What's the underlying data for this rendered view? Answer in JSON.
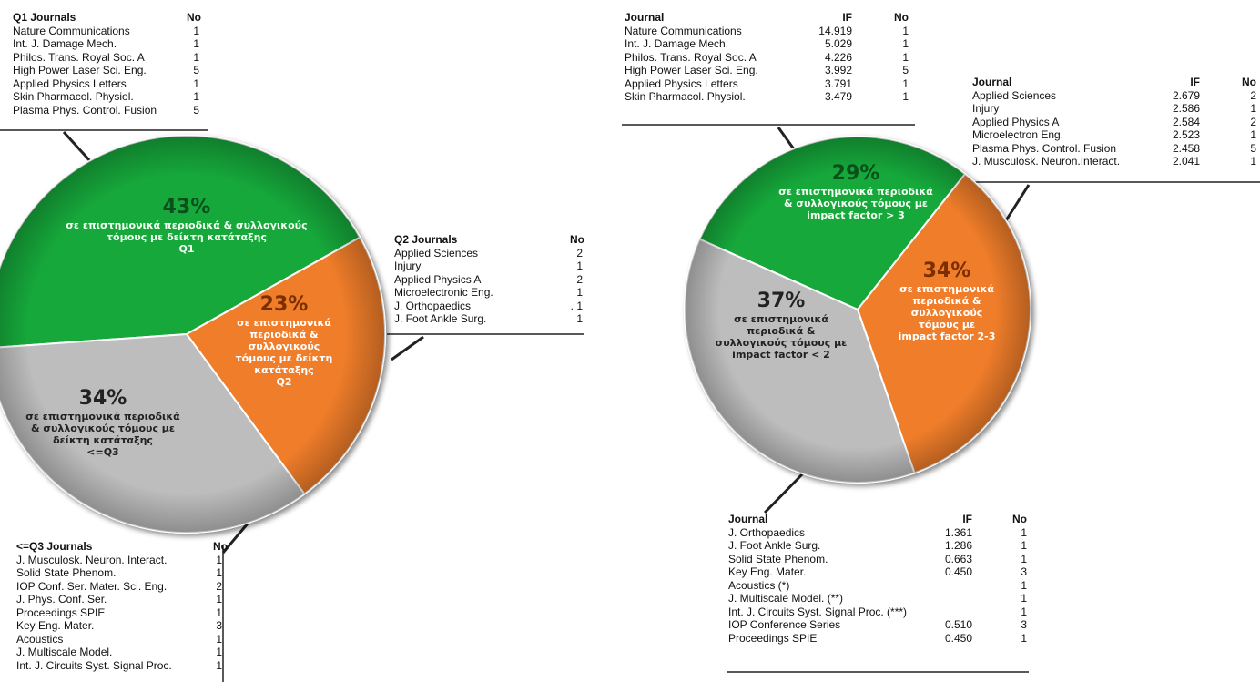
{
  "chart_data": [
    {
      "type": "pie",
      "categories": [
        "σε επιστημονικά περιοδικά & συλλογικούς\nτόμους με δείκτη κατάταξης\nQ1",
        "σε επιστημονικά\nπεριοδικά &\nσυλλογικούς\nτόμους με δείκτη\nκατάταξης\nQ2",
        "σε επιστημονικά περιοδικά\n& συλλογικούς τόμους με\nδείκτη κατάταξης\n<=Q3"
      ],
      "values": [
        43,
        23,
        34
      ],
      "value_labels": [
        "43%",
        "23%",
        "34%"
      ],
      "colors": [
        "#14a83a",
        "#ef7d2a",
        "#bdbdbd"
      ],
      "text_colors": [
        "#f2fff2",
        "#ffffff",
        "#222222"
      ],
      "value_label_colors": [
        "#0b4f1c",
        "#7a2f00",
        "#222222"
      ],
      "tables": [
        {
          "header": {
            "journal": "Q1 Journals",
            "no": "No"
          },
          "rows": [
            {
              "journal": "Nature Communications",
              "no": "1"
            },
            {
              "journal": "Int. J. Damage Mech.",
              "no": "1"
            },
            {
              "journal": "Philos. Trans. Royal Soc. A",
              "no": "1"
            },
            {
              "journal": "High Power Laser Sci. Eng.",
              "no": "5"
            },
            {
              "journal": "Applied Physics Letters",
              "no": "1"
            },
            {
              "journal": "Skin Pharmacol. Physiol.",
              "no": "1"
            },
            {
              "journal": "Plasma Phys. Control. Fusion",
              "no": "5"
            }
          ]
        },
        {
          "header": {
            "journal": "Q2 Journals",
            "no": "No"
          },
          "rows": [
            {
              "journal": "Applied Sciences",
              "no": "2"
            },
            {
              "journal": "Injury",
              "no": "1"
            },
            {
              "journal": "Applied Physics A",
              "no": "2"
            },
            {
              "journal": "Microelectronic Eng.",
              "no": "1"
            },
            {
              "journal": "J. Orthopaedics",
              "no": ". 1"
            },
            {
              "journal": "J. Foot Ankle Surg.",
              "no": "1"
            }
          ]
        },
        {
          "header": {
            "journal": "<=Q3 Journals",
            "no": "No"
          },
          "rows": [
            {
              "journal": "J. Musculosk. Neuron. Interact.",
              "no": "1"
            },
            {
              "journal": "Solid State Phenom.",
              "no": "1"
            },
            {
              "journal": "IOP Conf. Ser. Mater. Sci. Eng.",
              "no": "2"
            },
            {
              "journal": "J. Phys. Conf. Ser.",
              "no": "1"
            },
            {
              "journal": "Proceedings SPIE",
              "no": "1"
            },
            {
              "journal": "Key Eng. Mater.",
              "no": "3"
            },
            {
              "journal": "Acoustics",
              "no": "1"
            },
            {
              "journal": "J. Multiscale Model.",
              "no": "1"
            },
            {
              "journal": "Int. J. Circuits Syst. Signal Proc.",
              "no": "1"
            }
          ]
        }
      ]
    },
    {
      "type": "pie",
      "categories": [
        "σε επιστημονικά περιοδικά\n& συλλογικούς τόμους με\nimpact factor > 3",
        "σε επιστημονικά\nπεριοδικά &\nσυλλογικούς\nτόμους με\nimpact factor 2-3",
        "σε επιστημονικά\nπεριοδικά &\nσυλλογικούς τόμους με\nimpact factor < 2"
      ],
      "values": [
        29,
        34,
        37
      ],
      "value_labels": [
        "29%",
        "34%",
        "37%"
      ],
      "colors": [
        "#14a83a",
        "#ef7d2a",
        "#bdbdbd"
      ],
      "text_colors": [
        "#f2fff2",
        "#ffffff",
        "#222222"
      ],
      "value_label_colors": [
        "#0b4f1c",
        "#7a2f00",
        "#222222"
      ],
      "tables": [
        {
          "header": {
            "journal": "Journal",
            "if": "IF",
            "no": "No"
          },
          "rows": [
            {
              "journal": "Nature Communications",
              "if": "14.919",
              "no": "1"
            },
            {
              "journal": "Int. J. Damage Mech.",
              "if": "5.029",
              "no": "1"
            },
            {
              "journal": "Philos. Trans. Royal Soc. A",
              "if": "4.226",
              "no": "1"
            },
            {
              "journal": "High Power Laser Sci. Eng.",
              "if": "3.992",
              "no": "5"
            },
            {
              "journal": "Applied Physics Letters",
              "if": "3.791",
              "no": "1"
            },
            {
              "journal": "Skin Pharmacol. Physiol.",
              "if": "3.479",
              "no": "1"
            }
          ]
        },
        {
          "header": {
            "journal": "Journal",
            "if": "IF",
            "no": "No"
          },
          "rows": [
            {
              "journal": "Applied Sciences",
              "if": "2.679",
              "no": "2"
            },
            {
              "journal": "Injury",
              "if": "2.586",
              "no": "1"
            },
            {
              "journal": "Applied Physics A",
              "if": "2.584",
              "no": "2"
            },
            {
              "journal": "Microelectron Eng.",
              "if": "2.523",
              "no": "1"
            },
            {
              "journal": "Plasma Phys. Control. Fusion",
              "if": "2.458",
              "no": "5"
            },
            {
              "journal": "J. Musculosk. Neuron.Interact.",
              "if": "2.041",
              "no": "1"
            }
          ]
        },
        {
          "header": {
            "journal": "Journal",
            "if": "IF",
            "no": "No"
          },
          "rows": [
            {
              "journal": "J. Orthopaedics",
              "if": "1.361",
              "no": "1"
            },
            {
              "journal": "J. Foot Ankle Surg.",
              "if": "1.286",
              "no": "1"
            },
            {
              "journal": "Solid State Phenom.",
              "if": "0.663",
              "no": "1"
            },
            {
              "journal": "Key Eng. Mater.",
              "if": "0.450",
              "no": "3"
            },
            {
              "journal": "Acoustics (*)",
              "no": "1"
            },
            {
              "journal": "J. Multiscale Model. (**)",
              "no": "1"
            },
            {
              "journal": "Int. J. Circuits Syst. Signal Proc. (***)",
              "no": "1"
            },
            {
              "journal": "IOP Conference Series",
              "if": "0.510",
              "no": "3"
            },
            {
              "journal": "Proceedings SPIE",
              "if": "0.450",
              "no": "1"
            }
          ]
        }
      ]
    }
  ]
}
